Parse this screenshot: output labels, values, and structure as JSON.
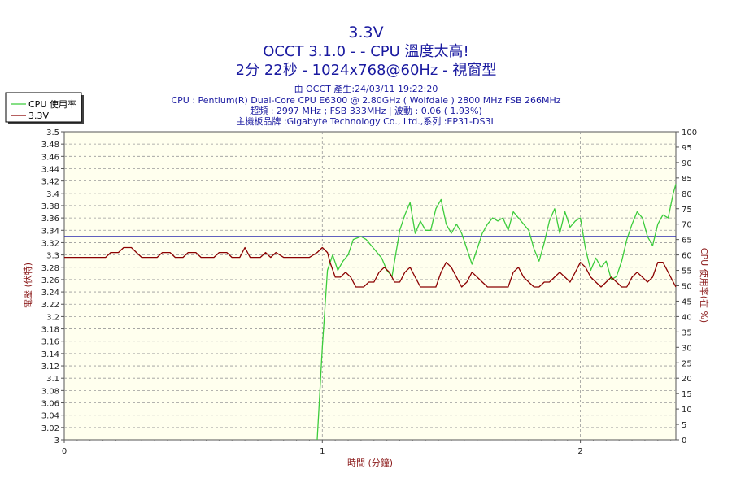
{
  "header": {
    "title_1": "3.3V",
    "title_2": "OCCT 3.1.0 -  - CPU 溫度太高!",
    "title_3": "2分 22秒 - 1024x768@60Hz - 視窗型",
    "info_1": "由 OCCT 產生:24/03/11 19:22:20",
    "info_2": "CPU : Pentium(R) Dual-Core CPU E6300 @ 2.80GHz ( Wolfdale ) 2800 MHz FSB 266MHz",
    "info_3": "超頻 : 2997 MHz ; FSB 333MHz | 波動 : 0.06 ( 1.93%)",
    "info_4": "主機板品牌 :Gigabyte Technology Co., Ltd.,系列 :EP31-DS3L"
  },
  "colors": {
    "title": "#1a1aa0",
    "cpu_usage": "#3ccc3c",
    "voltage": "#8b0000",
    "reference_line": "#2b2baf",
    "axis_label": "#8b1a1a",
    "plot_bg": "#ffffee",
    "grid": "#9a9a9a"
  },
  "chart_data": {
    "type": "line",
    "xlabel": "時間 (分鐘)",
    "ylabel_left": "電壓 (伏特)",
    "ylabel_right": "CPU 使用率(在 %)",
    "xlim": [
      0,
      2.37
    ],
    "ylim_left": [
      3.0,
      3.5
    ],
    "ylim_right": [
      0,
      100
    ],
    "x_ticks": [
      0,
      1,
      2
    ],
    "y_ticks_left": [
      "3",
      "3.02",
      "3.04",
      "3.06",
      "3.08",
      "3.1",
      "3.12",
      "3.14",
      "3.16",
      "3.18",
      "3.2",
      "3.22",
      "3.24",
      "3.26",
      "3.28",
      "3.3",
      "3.32",
      "3.34",
      "3.36",
      "3.38",
      "3.4",
      "3.42",
      "3.44",
      "3.46",
      "3.48",
      "3.5"
    ],
    "y_ticks_right": [
      "0",
      "5",
      "10",
      "15",
      "20",
      "25",
      "30",
      "35",
      "40",
      "45",
      "50",
      "55",
      "60",
      "65",
      "70",
      "75",
      "80",
      "85",
      "90",
      "95",
      "100"
    ],
    "grid": true,
    "legend_position": "top-left",
    "reference_line_y": 3.33,
    "series": [
      {
        "name": "CPU 使用率",
        "axis": "right",
        "values": [
          [
            0.98,
            0
          ],
          [
            1.0,
            30
          ],
          [
            1.02,
            55
          ],
          [
            1.04,
            60
          ],
          [
            1.06,
            55
          ],
          [
            1.08,
            58
          ],
          [
            1.1,
            60
          ],
          [
            1.12,
            65
          ],
          [
            1.15,
            66
          ],
          [
            1.17,
            65
          ],
          [
            1.2,
            62
          ],
          [
            1.23,
            59
          ],
          [
            1.25,
            55
          ],
          [
            1.27,
            53
          ],
          [
            1.28,
            58
          ],
          [
            1.3,
            68
          ],
          [
            1.32,
            73
          ],
          [
            1.34,
            77
          ],
          [
            1.36,
            67
          ],
          [
            1.38,
            71
          ],
          [
            1.4,
            68
          ],
          [
            1.42,
            68
          ],
          [
            1.44,
            75
          ],
          [
            1.46,
            78
          ],
          [
            1.48,
            70
          ],
          [
            1.5,
            67
          ],
          [
            1.52,
            70
          ],
          [
            1.54,
            67
          ],
          [
            1.56,
            62
          ],
          [
            1.58,
            57
          ],
          [
            1.6,
            62
          ],
          [
            1.62,
            67
          ],
          [
            1.64,
            70
          ],
          [
            1.66,
            72
          ],
          [
            1.68,
            71
          ],
          [
            1.7,
            72
          ],
          [
            1.72,
            68
          ],
          [
            1.74,
            74
          ],
          [
            1.76,
            72
          ],
          [
            1.78,
            70
          ],
          [
            1.8,
            68
          ],
          [
            1.82,
            62
          ],
          [
            1.84,
            58
          ],
          [
            1.86,
            64
          ],
          [
            1.88,
            71
          ],
          [
            1.9,
            75
          ],
          [
            1.92,
            67
          ],
          [
            1.94,
            74
          ],
          [
            1.96,
            69
          ],
          [
            1.98,
            71
          ],
          [
            2.0,
            72
          ],
          [
            2.02,
            62
          ],
          [
            2.04,
            55
          ],
          [
            2.06,
            59
          ],
          [
            2.08,
            56
          ],
          [
            2.1,
            58
          ],
          [
            2.12,
            52
          ],
          [
            2.14,
            53
          ],
          [
            2.16,
            58
          ],
          [
            2.18,
            65
          ],
          [
            2.2,
            70
          ],
          [
            2.22,
            74
          ],
          [
            2.24,
            72
          ],
          [
            2.26,
            66
          ],
          [
            2.28,
            63
          ],
          [
            2.3,
            70
          ],
          [
            2.32,
            73
          ],
          [
            2.34,
            72
          ],
          [
            2.36,
            80
          ],
          [
            2.37,
            83
          ]
        ]
      },
      {
        "name": "3.3V",
        "axis": "left",
        "values": [
          [
            0.0,
            3.296
          ],
          [
            0.12,
            3.296
          ],
          [
            0.16,
            3.296
          ],
          [
            0.18,
            3.304
          ],
          [
            0.21,
            3.304
          ],
          [
            0.23,
            3.312
          ],
          [
            0.26,
            3.312
          ],
          [
            0.28,
            3.304
          ],
          [
            0.3,
            3.296
          ],
          [
            0.36,
            3.296
          ],
          [
            0.38,
            3.304
          ],
          [
            0.41,
            3.304
          ],
          [
            0.43,
            3.296
          ],
          [
            0.46,
            3.296
          ],
          [
            0.48,
            3.304
          ],
          [
            0.51,
            3.304
          ],
          [
            0.53,
            3.296
          ],
          [
            0.58,
            3.296
          ],
          [
            0.6,
            3.304
          ],
          [
            0.63,
            3.304
          ],
          [
            0.65,
            3.296
          ],
          [
            0.68,
            3.296
          ],
          [
            0.7,
            3.312
          ],
          [
            0.72,
            3.296
          ],
          [
            0.76,
            3.296
          ],
          [
            0.78,
            3.304
          ],
          [
            0.8,
            3.296
          ],
          [
            0.82,
            3.304
          ],
          [
            0.85,
            3.296
          ],
          [
            0.95,
            3.296
          ],
          [
            0.98,
            3.304
          ],
          [
            1.0,
            3.312
          ],
          [
            1.02,
            3.304
          ],
          [
            1.03,
            3.288
          ],
          [
            1.05,
            3.264
          ],
          [
            1.07,
            3.264
          ],
          [
            1.09,
            3.272
          ],
          [
            1.11,
            3.264
          ],
          [
            1.13,
            3.248
          ],
          [
            1.16,
            3.248
          ],
          [
            1.18,
            3.256
          ],
          [
            1.2,
            3.256
          ],
          [
            1.22,
            3.272
          ],
          [
            1.24,
            3.28
          ],
          [
            1.26,
            3.272
          ],
          [
            1.28,
            3.256
          ],
          [
            1.3,
            3.256
          ],
          [
            1.32,
            3.272
          ],
          [
            1.34,
            3.28
          ],
          [
            1.36,
            3.264
          ],
          [
            1.38,
            3.248
          ],
          [
            1.44,
            3.248
          ],
          [
            1.46,
            3.272
          ],
          [
            1.48,
            3.288
          ],
          [
            1.5,
            3.28
          ],
          [
            1.52,
            3.264
          ],
          [
            1.54,
            3.248
          ],
          [
            1.56,
            3.256
          ],
          [
            1.58,
            3.272
          ],
          [
            1.6,
            3.264
          ],
          [
            1.62,
            3.256
          ],
          [
            1.64,
            3.248
          ],
          [
            1.72,
            3.248
          ],
          [
            1.74,
            3.272
          ],
          [
            1.76,
            3.28
          ],
          [
            1.78,
            3.264
          ],
          [
            1.8,
            3.256
          ],
          [
            1.82,
            3.248
          ],
          [
            1.84,
            3.248
          ],
          [
            1.86,
            3.256
          ],
          [
            1.88,
            3.256
          ],
          [
            1.9,
            3.264
          ],
          [
            1.92,
            3.272
          ],
          [
            1.94,
            3.264
          ],
          [
            1.96,
            3.256
          ],
          [
            1.98,
            3.272
          ],
          [
            2.0,
            3.288
          ],
          [
            2.02,
            3.28
          ],
          [
            2.04,
            3.264
          ],
          [
            2.06,
            3.256
          ],
          [
            2.08,
            3.248
          ],
          [
            2.1,
            3.256
          ],
          [
            2.12,
            3.264
          ],
          [
            2.14,
            3.256
          ],
          [
            2.16,
            3.248
          ],
          [
            2.18,
            3.248
          ],
          [
            2.2,
            3.264
          ],
          [
            2.22,
            3.272
          ],
          [
            2.24,
            3.264
          ],
          [
            2.26,
            3.256
          ],
          [
            2.28,
            3.264
          ],
          [
            2.3,
            3.288
          ],
          [
            2.32,
            3.288
          ],
          [
            2.34,
            3.272
          ],
          [
            2.36,
            3.256
          ],
          [
            2.37,
            3.248
          ]
        ]
      }
    ]
  }
}
